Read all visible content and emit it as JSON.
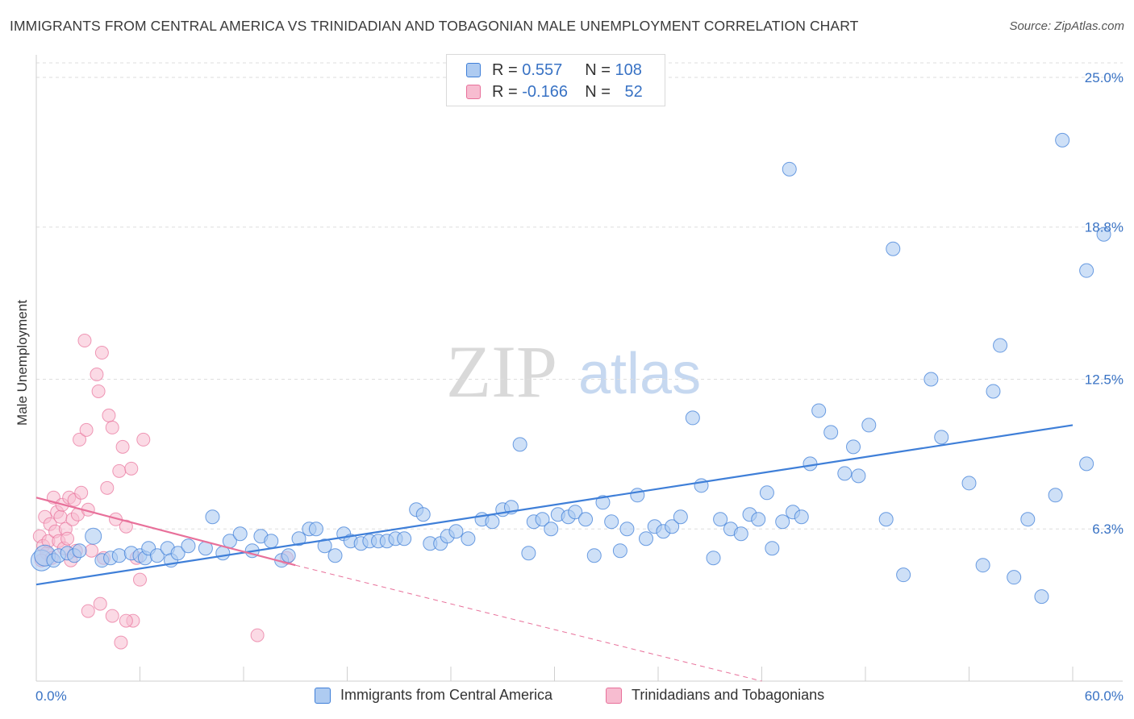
{
  "title": "IMMIGRANTS FROM CENTRAL AMERICA VS TRINIDADIAN AND TOBAGONIAN MALE UNEMPLOYMENT CORRELATION CHART",
  "source": "Source: ZipAtlas.com",
  "watermark": {
    "zip": "ZIP",
    "atlas": "atlas"
  },
  "colors": {
    "blue": "#3f7fd8",
    "blue_fill": "#aecbf1",
    "pink": "#e8709a",
    "pink_fill": "#f7bcd0",
    "axis_text": "#3872c4"
  },
  "legend": {
    "r_label": "R = ",
    "n_label": "N = ",
    "series1": {
      "r": "0.557",
      "n": "108"
    },
    "series2": {
      "r": "-0.166",
      "n": "52"
    }
  },
  "chart_data": {
    "type": "scatter",
    "title": "IMMIGRANTS FROM CENTRAL AMERICA VS TRINIDADIAN AND TOBAGONIAN MALE UNEMPLOYMENT CORRELATION CHART",
    "xlabel": "",
    "ylabel": "Male Unemployment",
    "xlim": [
      0,
      60
    ],
    "ylim": [
      0,
      25.6
    ],
    "x_tick_labels": [
      "0.0%",
      "60.0%"
    ],
    "y_ticks": [
      6.3,
      12.5,
      18.8,
      25.0
    ],
    "y_tick_labels": [
      "6.3%",
      "12.5%",
      "18.8%",
      "25.0%"
    ],
    "grid": true,
    "series": [
      {
        "name": "Immigrants from Central America",
        "color": "#3f7fd8",
        "trend": {
          "x": [
            0,
            60
          ],
          "y": [
            4.0,
            10.6
          ]
        },
        "points": [
          [
            0.3,
            5.0
          ],
          [
            0.5,
            5.2
          ],
          [
            1.0,
            5.0
          ],
          [
            1.3,
            5.2
          ],
          [
            1.8,
            5.3
          ],
          [
            2.2,
            5.2
          ],
          [
            2.5,
            5.4
          ],
          [
            3.3,
            6.0
          ],
          [
            3.8,
            5.0
          ],
          [
            4.3,
            5.1
          ],
          [
            4.8,
            5.2
          ],
          [
            5.5,
            5.3
          ],
          [
            6.0,
            5.2
          ],
          [
            6.3,
            5.1
          ],
          [
            6.5,
            5.5
          ],
          [
            7.0,
            5.2
          ],
          [
            7.6,
            5.5
          ],
          [
            7.8,
            5.0
          ],
          [
            8.2,
            5.3
          ],
          [
            8.8,
            5.6
          ],
          [
            9.8,
            5.5
          ],
          [
            10.2,
            6.8
          ],
          [
            10.8,
            5.3
          ],
          [
            11.2,
            5.8
          ],
          [
            11.8,
            6.1
          ],
          [
            12.5,
            5.4
          ],
          [
            13.0,
            6.0
          ],
          [
            13.6,
            5.8
          ],
          [
            14.2,
            5.0
          ],
          [
            14.6,
            5.2
          ],
          [
            15.2,
            5.9
          ],
          [
            15.8,
            6.3
          ],
          [
            16.2,
            6.3
          ],
          [
            16.7,
            5.6
          ],
          [
            17.3,
            5.2
          ],
          [
            17.8,
            6.1
          ],
          [
            18.2,
            5.8
          ],
          [
            18.8,
            5.7
          ],
          [
            19.3,
            5.8
          ],
          [
            19.8,
            5.8
          ],
          [
            20.3,
            5.8
          ],
          [
            20.8,
            5.9
          ],
          [
            21.3,
            5.9
          ],
          [
            22.0,
            7.1
          ],
          [
            22.4,
            6.9
          ],
          [
            22.8,
            5.7
          ],
          [
            23.4,
            5.7
          ],
          [
            23.8,
            6.0
          ],
          [
            24.3,
            6.2
          ],
          [
            25.0,
            5.9
          ],
          [
            25.8,
            6.7
          ],
          [
            26.4,
            6.6
          ],
          [
            27.0,
            7.1
          ],
          [
            27.5,
            7.2
          ],
          [
            28.0,
            9.8
          ],
          [
            28.5,
            5.3
          ],
          [
            28.8,
            6.6
          ],
          [
            29.3,
            6.7
          ],
          [
            29.8,
            6.3
          ],
          [
            30.2,
            6.9
          ],
          [
            30.8,
            6.8
          ],
          [
            31.2,
            7.0
          ],
          [
            31.8,
            6.7
          ],
          [
            32.3,
            5.2
          ],
          [
            32.8,
            7.4
          ],
          [
            33.3,
            6.6
          ],
          [
            33.8,
            5.4
          ],
          [
            34.2,
            6.3
          ],
          [
            34.8,
            7.7
          ],
          [
            35.3,
            5.9
          ],
          [
            35.8,
            6.4
          ],
          [
            36.3,
            6.2
          ],
          [
            36.8,
            6.4
          ],
          [
            37.3,
            6.8
          ],
          [
            38.0,
            10.9
          ],
          [
            38.5,
            8.1
          ],
          [
            39.2,
            5.1
          ],
          [
            39.6,
            6.7
          ],
          [
            40.2,
            6.3
          ],
          [
            40.8,
            6.1
          ],
          [
            41.3,
            6.9
          ],
          [
            41.8,
            6.7
          ],
          [
            42.3,
            7.8
          ],
          [
            42.6,
            5.5
          ],
          [
            43.2,
            6.6
          ],
          [
            43.8,
            7.0
          ],
          [
            44.3,
            6.8
          ],
          [
            44.8,
            9.0
          ],
          [
            45.3,
            11.2
          ],
          [
            46.0,
            10.3
          ],
          [
            46.8,
            8.6
          ],
          [
            47.3,
            9.7
          ],
          [
            47.6,
            8.5
          ],
          [
            48.2,
            10.6
          ],
          [
            49.2,
            6.7
          ],
          [
            49.6,
            17.9
          ],
          [
            50.2,
            4.4
          ],
          [
            51.8,
            12.5
          ],
          [
            52.4,
            10.1
          ],
          [
            54.0,
            8.2
          ],
          [
            54.8,
            4.8
          ],
          [
            55.4,
            12.0
          ],
          [
            55.8,
            13.9
          ],
          [
            56.6,
            4.3
          ],
          [
            57.4,
            6.7
          ],
          [
            58.2,
            3.5
          ],
          [
            59.0,
            7.7
          ],
          [
            59.4,
            22.4
          ],
          [
            60.8,
            9.0
          ],
          [
            60.8,
            17.0
          ],
          [
            61.8,
            18.5
          ],
          [
            43.6,
            21.2
          ]
        ]
      },
      {
        "name": "Trinidadians and Tobagonians",
        "color": "#e8709a",
        "trend": {
          "x": [
            0,
            15
          ],
          "y": [
            7.6,
            4.8
          ]
        },
        "trend_dashed": {
          "x": [
            15,
            42
          ],
          "y": [
            4.8,
            0.0
          ]
        },
        "points": [
          [
            0.2,
            6.0
          ],
          [
            0.4,
            5.6
          ],
          [
            0.5,
            6.8
          ],
          [
            0.6,
            5.3
          ],
          [
            0.7,
            5.8
          ],
          [
            0.8,
            6.5
          ],
          [
            0.9,
            5.1
          ],
          [
            1.0,
            7.6
          ],
          [
            1.1,
            6.2
          ],
          [
            1.2,
            7.0
          ],
          [
            1.3,
            5.8
          ],
          [
            1.4,
            6.8
          ],
          [
            1.5,
            7.3
          ],
          [
            1.6,
            5.5
          ],
          [
            1.7,
            6.3
          ],
          [
            1.8,
            5.9
          ],
          [
            1.9,
            7.6
          ],
          [
            2.0,
            5.0
          ],
          [
            2.1,
            6.7
          ],
          [
            2.2,
            7.5
          ],
          [
            2.3,
            5.4
          ],
          [
            2.4,
            6.9
          ],
          [
            2.5,
            10.0
          ],
          [
            2.6,
            7.8
          ],
          [
            2.8,
            14.1
          ],
          [
            2.9,
            10.4
          ],
          [
            3.0,
            7.1
          ],
          [
            3.2,
            5.4
          ],
          [
            3.5,
            12.7
          ],
          [
            3.6,
            12.0
          ],
          [
            3.8,
            13.6
          ],
          [
            3.9,
            5.1
          ],
          [
            4.1,
            8.0
          ],
          [
            4.2,
            11.0
          ],
          [
            4.4,
            10.5
          ],
          [
            4.6,
            6.7
          ],
          [
            4.8,
            8.7
          ],
          [
            5.0,
            9.7
          ],
          [
            5.2,
            6.4
          ],
          [
            5.5,
            8.8
          ],
          [
            5.6,
            2.5
          ],
          [
            5.8,
            5.1
          ],
          [
            6.0,
            4.2
          ],
          [
            6.2,
            10.0
          ],
          [
            3.0,
            2.9
          ],
          [
            3.7,
            3.2
          ],
          [
            4.4,
            2.7
          ],
          [
            4.9,
            1.6
          ],
          [
            5.2,
            2.5
          ],
          [
            14.5,
            5.1
          ],
          [
            12.8,
            1.9
          ],
          [
            0.3,
            5.0
          ]
        ]
      }
    ]
  }
}
